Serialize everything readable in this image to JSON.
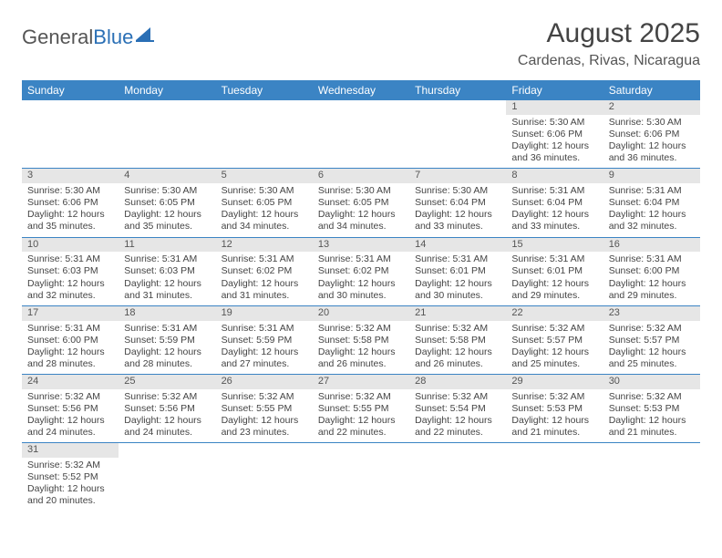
{
  "logo": {
    "word1": "General",
    "word2": "Blue"
  },
  "header": {
    "month": "August 2025",
    "location": "Cardenas, Rivas, Nicaragua"
  },
  "colors": {
    "header_bg": "#3b84c4",
    "header_text": "#ffffff",
    "daynum_bg": "#e6e6e6",
    "row_divider": "#3b84c4",
    "text": "#444444",
    "logo_gray": "#555555",
    "logo_blue": "#2a6fb5",
    "page_bg": "#ffffff"
  },
  "typography": {
    "month_fontsize": 30,
    "location_fontsize": 16,
    "weekday_fontsize": 12,
    "cell_fontsize": 10.5,
    "logo_fontsize": 22
  },
  "weekdays": [
    "Sunday",
    "Monday",
    "Tuesday",
    "Wednesday",
    "Thursday",
    "Friday",
    "Saturday"
  ],
  "weeks": [
    [
      {
        "day": "",
        "lines": []
      },
      {
        "day": "",
        "lines": []
      },
      {
        "day": "",
        "lines": []
      },
      {
        "day": "",
        "lines": []
      },
      {
        "day": "",
        "lines": []
      },
      {
        "day": "1",
        "lines": [
          "Sunrise: 5:30 AM",
          "Sunset: 6:06 PM",
          "Daylight: 12 hours and 36 minutes."
        ]
      },
      {
        "day": "2",
        "lines": [
          "Sunrise: 5:30 AM",
          "Sunset: 6:06 PM",
          "Daylight: 12 hours and 36 minutes."
        ]
      }
    ],
    [
      {
        "day": "3",
        "lines": [
          "Sunrise: 5:30 AM",
          "Sunset: 6:06 PM",
          "Daylight: 12 hours and 35 minutes."
        ]
      },
      {
        "day": "4",
        "lines": [
          "Sunrise: 5:30 AM",
          "Sunset: 6:05 PM",
          "Daylight: 12 hours and 35 minutes."
        ]
      },
      {
        "day": "5",
        "lines": [
          "Sunrise: 5:30 AM",
          "Sunset: 6:05 PM",
          "Daylight: 12 hours and 34 minutes."
        ]
      },
      {
        "day": "6",
        "lines": [
          "Sunrise: 5:30 AM",
          "Sunset: 6:05 PM",
          "Daylight: 12 hours and 34 minutes."
        ]
      },
      {
        "day": "7",
        "lines": [
          "Sunrise: 5:30 AM",
          "Sunset: 6:04 PM",
          "Daylight: 12 hours and 33 minutes."
        ]
      },
      {
        "day": "8",
        "lines": [
          "Sunrise: 5:31 AM",
          "Sunset: 6:04 PM",
          "Daylight: 12 hours and 33 minutes."
        ]
      },
      {
        "day": "9",
        "lines": [
          "Sunrise: 5:31 AM",
          "Sunset: 6:04 PM",
          "Daylight: 12 hours and 32 minutes."
        ]
      }
    ],
    [
      {
        "day": "10",
        "lines": [
          "Sunrise: 5:31 AM",
          "Sunset: 6:03 PM",
          "Daylight: 12 hours and 32 minutes."
        ]
      },
      {
        "day": "11",
        "lines": [
          "Sunrise: 5:31 AM",
          "Sunset: 6:03 PM",
          "Daylight: 12 hours and 31 minutes."
        ]
      },
      {
        "day": "12",
        "lines": [
          "Sunrise: 5:31 AM",
          "Sunset: 6:02 PM",
          "Daylight: 12 hours and 31 minutes."
        ]
      },
      {
        "day": "13",
        "lines": [
          "Sunrise: 5:31 AM",
          "Sunset: 6:02 PM",
          "Daylight: 12 hours and 30 minutes."
        ]
      },
      {
        "day": "14",
        "lines": [
          "Sunrise: 5:31 AM",
          "Sunset: 6:01 PM",
          "Daylight: 12 hours and 30 minutes."
        ]
      },
      {
        "day": "15",
        "lines": [
          "Sunrise: 5:31 AM",
          "Sunset: 6:01 PM",
          "Daylight: 12 hours and 29 minutes."
        ]
      },
      {
        "day": "16",
        "lines": [
          "Sunrise: 5:31 AM",
          "Sunset: 6:00 PM",
          "Daylight: 12 hours and 29 minutes."
        ]
      }
    ],
    [
      {
        "day": "17",
        "lines": [
          "Sunrise: 5:31 AM",
          "Sunset: 6:00 PM",
          "Daylight: 12 hours and 28 minutes."
        ]
      },
      {
        "day": "18",
        "lines": [
          "Sunrise: 5:31 AM",
          "Sunset: 5:59 PM",
          "Daylight: 12 hours and 28 minutes."
        ]
      },
      {
        "day": "19",
        "lines": [
          "Sunrise: 5:31 AM",
          "Sunset: 5:59 PM",
          "Daylight: 12 hours and 27 minutes."
        ]
      },
      {
        "day": "20",
        "lines": [
          "Sunrise: 5:32 AM",
          "Sunset: 5:58 PM",
          "Daylight: 12 hours and 26 minutes."
        ]
      },
      {
        "day": "21",
        "lines": [
          "Sunrise: 5:32 AM",
          "Sunset: 5:58 PM",
          "Daylight: 12 hours and 26 minutes."
        ]
      },
      {
        "day": "22",
        "lines": [
          "Sunrise: 5:32 AM",
          "Sunset: 5:57 PM",
          "Daylight: 12 hours and 25 minutes."
        ]
      },
      {
        "day": "23",
        "lines": [
          "Sunrise: 5:32 AM",
          "Sunset: 5:57 PM",
          "Daylight: 12 hours and 25 minutes."
        ]
      }
    ],
    [
      {
        "day": "24",
        "lines": [
          "Sunrise: 5:32 AM",
          "Sunset: 5:56 PM",
          "Daylight: 12 hours and 24 minutes."
        ]
      },
      {
        "day": "25",
        "lines": [
          "Sunrise: 5:32 AM",
          "Sunset: 5:56 PM",
          "Daylight: 12 hours and 24 minutes."
        ]
      },
      {
        "day": "26",
        "lines": [
          "Sunrise: 5:32 AM",
          "Sunset: 5:55 PM",
          "Daylight: 12 hours and 23 minutes."
        ]
      },
      {
        "day": "27",
        "lines": [
          "Sunrise: 5:32 AM",
          "Sunset: 5:55 PM",
          "Daylight: 12 hours and 22 minutes."
        ]
      },
      {
        "day": "28",
        "lines": [
          "Sunrise: 5:32 AM",
          "Sunset: 5:54 PM",
          "Daylight: 12 hours and 22 minutes."
        ]
      },
      {
        "day": "29",
        "lines": [
          "Sunrise: 5:32 AM",
          "Sunset: 5:53 PM",
          "Daylight: 12 hours and 21 minutes."
        ]
      },
      {
        "day": "30",
        "lines": [
          "Sunrise: 5:32 AM",
          "Sunset: 5:53 PM",
          "Daylight: 12 hours and 21 minutes."
        ]
      }
    ],
    [
      {
        "day": "31",
        "lines": [
          "Sunrise: 5:32 AM",
          "Sunset: 5:52 PM",
          "Daylight: 12 hours and 20 minutes."
        ]
      },
      {
        "day": "",
        "lines": []
      },
      {
        "day": "",
        "lines": []
      },
      {
        "day": "",
        "lines": []
      },
      {
        "day": "",
        "lines": []
      },
      {
        "day": "",
        "lines": []
      },
      {
        "day": "",
        "lines": []
      }
    ]
  ]
}
